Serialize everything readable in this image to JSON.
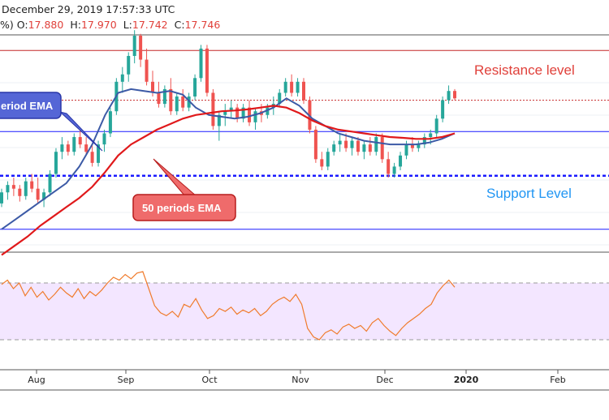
{
  "header": {
    "date_line": "December 29, 2019 17:57:33 UTC",
    "ohlc_prefix": "%)",
    "o_label": "O:",
    "o_value": "17.880",
    "h_label": "H:",
    "h_value": "17.970",
    "l_label": "L:",
    "l_value": "17.742",
    "c_label": "C:",
    "c_value": "17.746"
  },
  "colors": {
    "up": "#26a69a",
    "down": "#ef5350",
    "ema_fast": "#3c5aa6",
    "ema_slow": "#e0191b",
    "resistance": "#c62828",
    "support": "#1a1aff",
    "rsi_line": "#f07b2c",
    "rsi_band": "#f3e6ff",
    "resistance_text": "#e0403a",
    "support_text": "#2196f3"
  },
  "chart_data": {
    "type": "candlestick",
    "x_ticks": [
      "Aug",
      "Sep",
      "Oct",
      "Nov",
      "Dec",
      "2020",
      "Feb"
    ],
    "price_range": [
      13.6,
      19.45
    ],
    "resistance_level": 19.05,
    "support_level": 15.65,
    "extra_levels": [
      {
        "value": 17.7,
        "style": "dotted",
        "color": "resistance"
      },
      {
        "value": 16.85,
        "style": "solid",
        "color": "support"
      },
      {
        "value": 14.2,
        "style": "solid",
        "color": "support"
      }
    ],
    "annotations": {
      "resistance": "Resistance level",
      "support": "Support Level",
      "fast_ema": "eriod EMA",
      "slow_ema": "50 periods EMA"
    },
    "ema_fast": [
      14.2,
      14.45,
      14.7,
      14.95,
      15.2,
      15.45,
      15.9,
      16.5,
      17.3,
      17.9,
      18.0,
      17.95,
      17.9,
      17.95,
      17.85,
      17.5,
      17.3,
      17.25,
      17.2,
      17.25,
      17.35,
      17.5,
      17.75,
      17.55,
      17.2,
      17.0,
      16.8,
      16.7,
      16.6,
      16.55,
      16.5,
      16.5,
      16.5,
      16.55,
      16.65,
      16.8
    ],
    "ema_slow": [
      13.5,
      13.75,
      14.0,
      14.3,
      14.55,
      14.8,
      15.05,
      15.35,
      15.75,
      16.2,
      16.5,
      16.7,
      16.9,
      17.05,
      17.2,
      17.3,
      17.35,
      17.4,
      17.42,
      17.45,
      17.5,
      17.55,
      17.5,
      17.35,
      17.15,
      17.0,
      16.9,
      16.85,
      16.8,
      16.75,
      16.7,
      16.68,
      16.65,
      16.65,
      16.7,
      16.8
    ],
    "candles": [
      [
        14.9,
        15.3,
        14.8,
        15.2
      ],
      [
        15.2,
        15.5,
        15.0,
        15.4
      ],
      [
        15.4,
        15.6,
        15.1,
        15.3
      ],
      [
        15.3,
        15.4,
        14.95,
        15.1
      ],
      [
        15.1,
        15.6,
        15.0,
        15.5
      ],
      [
        15.5,
        15.7,
        15.2,
        15.3
      ],
      [
        15.3,
        15.6,
        14.9,
        15.0
      ],
      [
        15.0,
        15.3,
        14.8,
        15.2
      ],
      [
        15.2,
        15.8,
        15.1,
        15.7
      ],
      [
        15.7,
        16.4,
        15.6,
        16.3
      ],
      [
        16.3,
        16.7,
        16.1,
        16.5
      ],
      [
        16.5,
        16.6,
        16.2,
        16.3
      ],
      [
        16.3,
        16.8,
        16.2,
        16.7
      ],
      [
        16.7,
        16.9,
        16.4,
        16.5
      ],
      [
        16.5,
        16.7,
        16.2,
        16.3
      ],
      [
        16.3,
        16.5,
        15.9,
        16.0
      ],
      [
        16.0,
        16.6,
        15.9,
        16.5
      ],
      [
        16.5,
        16.9,
        16.3,
        16.8
      ],
      [
        16.8,
        17.5,
        16.7,
        17.4
      ],
      [
        17.4,
        18.3,
        17.3,
        18.2
      ],
      [
        18.2,
        18.6,
        17.9,
        18.4
      ],
      [
        18.4,
        19.0,
        18.2,
        18.9
      ],
      [
        18.9,
        19.6,
        18.7,
        19.45
      ],
      [
        19.45,
        19.5,
        18.6,
        18.8
      ],
      [
        18.8,
        19.1,
        18.1,
        18.2
      ],
      [
        18.2,
        18.5,
        17.8,
        17.9
      ],
      [
        17.9,
        18.2,
        17.5,
        17.6
      ],
      [
        17.6,
        18.1,
        17.5,
        18.0
      ],
      [
        18.0,
        18.3,
        17.3,
        17.4
      ],
      [
        17.4,
        17.9,
        17.3,
        17.8
      ],
      [
        17.8,
        18.0,
        17.4,
        17.5
      ],
      [
        17.5,
        17.9,
        17.4,
        17.8
      ],
      [
        17.8,
        18.4,
        17.7,
        18.3
      ],
      [
        18.3,
        19.2,
        18.2,
        19.1
      ],
      [
        19.1,
        19.2,
        17.8,
        17.9
      ],
      [
        17.9,
        18.0,
        16.9,
        17.0
      ],
      [
        17.0,
        17.4,
        16.6,
        17.3
      ],
      [
        17.3,
        17.6,
        17.0,
        17.4
      ],
      [
        17.4,
        17.7,
        17.2,
        17.5
      ],
      [
        17.5,
        17.6,
        17.1,
        17.2
      ],
      [
        17.2,
        17.6,
        17.1,
        17.5
      ],
      [
        17.5,
        17.7,
        17.0,
        17.1
      ],
      [
        17.1,
        17.5,
        16.9,
        17.4
      ],
      [
        17.4,
        17.6,
        17.1,
        17.3
      ],
      [
        17.3,
        17.6,
        17.2,
        17.5
      ],
      [
        17.5,
        17.8,
        17.3,
        17.6
      ],
      [
        17.6,
        18.0,
        17.5,
        17.9
      ],
      [
        17.9,
        18.3,
        17.8,
        18.2
      ],
      [
        18.2,
        18.4,
        17.8,
        17.9
      ],
      [
        17.9,
        18.3,
        17.8,
        18.2
      ],
      [
        18.2,
        18.3,
        17.6,
        17.7
      ],
      [
        17.7,
        17.8,
        16.8,
        16.9
      ],
      [
        16.9,
        17.0,
        16.0,
        16.1
      ],
      [
        16.1,
        16.3,
        15.8,
        15.9
      ],
      [
        15.9,
        16.4,
        15.8,
        16.3
      ],
      [
        16.3,
        16.6,
        16.2,
        16.5
      ],
      [
        16.5,
        16.8,
        16.3,
        16.6
      ],
      [
        16.6,
        16.8,
        16.3,
        16.4
      ],
      [
        16.4,
        16.7,
        16.2,
        16.6
      ],
      [
        16.6,
        16.7,
        16.2,
        16.3
      ],
      [
        16.3,
        16.6,
        16.1,
        16.5
      ],
      [
        16.5,
        16.7,
        16.2,
        16.3
      ],
      [
        16.3,
        16.8,
        16.2,
        16.7
      ],
      [
        16.7,
        16.8,
        16.0,
        16.1
      ],
      [
        16.1,
        16.3,
        15.6,
        15.7
      ],
      [
        15.7,
        16.0,
        15.6,
        15.9
      ],
      [
        15.9,
        16.3,
        15.8,
        16.2
      ],
      [
        16.2,
        16.6,
        16.1,
        16.5
      ],
      [
        16.5,
        16.7,
        16.3,
        16.4
      ],
      [
        16.4,
        16.6,
        16.3,
        16.5
      ],
      [
        16.5,
        16.8,
        16.4,
        16.7
      ],
      [
        16.7,
        16.9,
        16.5,
        16.8
      ],
      [
        16.8,
        17.3,
        16.7,
        17.2
      ],
      [
        17.2,
        17.8,
        17.1,
        17.7
      ],
      [
        17.7,
        18.1,
        17.6,
        17.95
      ],
      [
        17.95,
        18.0,
        17.7,
        17.75
      ]
    ],
    "rsi": {
      "range": [
        0,
        100
      ],
      "overbought": 70,
      "oversold": 30,
      "values": [
        69,
        72,
        66,
        70,
        61,
        67,
        60,
        64,
        58,
        62,
        67,
        63,
        60,
        66,
        59,
        64,
        61,
        65,
        70,
        74,
        72,
        76,
        73,
        77,
        78,
        66,
        54,
        49,
        47,
        50,
        46,
        55,
        53,
        59,
        51,
        45,
        47,
        52,
        50,
        53,
        48,
        51,
        49,
        52,
        47,
        50,
        55,
        58,
        60,
        57,
        62,
        55,
        38,
        32,
        30,
        35,
        37,
        34,
        39,
        41,
        38,
        40,
        36,
        42,
        45,
        40,
        36,
        33,
        38,
        42,
        45,
        48,
        52,
        55,
        63,
        68,
        72,
        67
      ]
    }
  }
}
